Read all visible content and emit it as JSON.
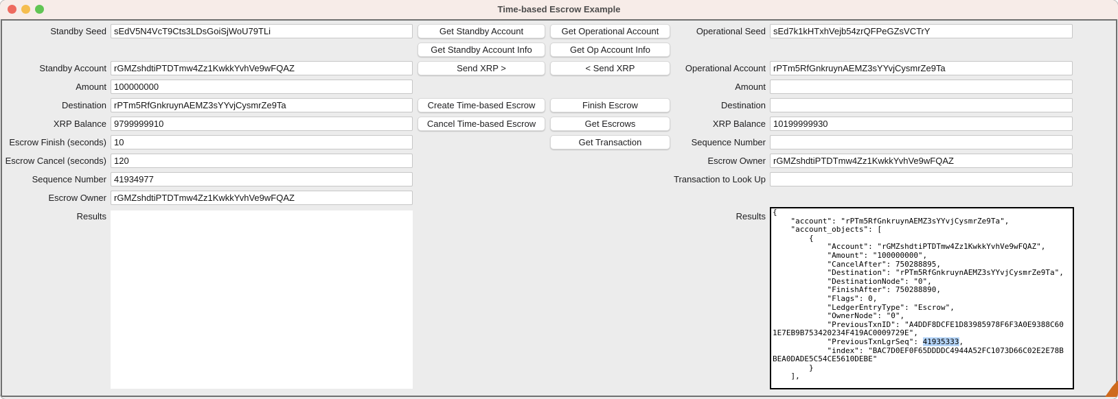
{
  "window": {
    "title": "Time-based Escrow Example"
  },
  "colors": {
    "titlebar_bg": "#f7ece8",
    "content_bg": "#ececec",
    "results_border": "#000000",
    "selection_highlight": "#b5d5f9",
    "traffic_close": "#ee6a5f",
    "traffic_minimize": "#f5bd4f",
    "traffic_zoom": "#61c554",
    "cursor_orange": "#cf6a1d"
  },
  "left_panel": {
    "fields": [
      {
        "label": "Standby Seed",
        "value": "sEdV5N4VcT9Cts3LDsGoiSjWoU79TLi"
      },
      {
        "label": "Standby Account",
        "value": "rGMZshdtiPTDTmw4Zz1KwkkYvhVe9wFQAZ"
      },
      {
        "label": "Amount",
        "value": "100000000"
      },
      {
        "label": "Destination",
        "value": "rPTm5RfGnkruynAEMZ3sYYvjCysmrZe9Ta"
      },
      {
        "label": "XRP Balance",
        "value": "9799999910"
      },
      {
        "label": "Escrow Finish (seconds)",
        "value": "10"
      },
      {
        "label": "Escrow Cancel (seconds)",
        "value": "120"
      },
      {
        "label": "Sequence Number",
        "value": "41934977"
      },
      {
        "label": "Escrow Owner",
        "value": "rGMZshdtiPTDTmw4Zz1KwkkYvhVe9wFQAZ"
      }
    ],
    "results_label": "Results",
    "results_value": ""
  },
  "buttons": {
    "col_a": [
      {
        "label": "Get Standby Account"
      },
      {
        "label": "Get Standby Account Info"
      },
      {
        "label": "Send XRP >"
      },
      {
        "label": "Create Time-based Escrow"
      },
      {
        "label": "Cancel Time-based Escrow"
      }
    ],
    "col_b": [
      {
        "label": "Get Operational Account"
      },
      {
        "label": "Get Op Account Info"
      },
      {
        "label": "< Send XRP"
      },
      {
        "label": "Finish Escrow"
      },
      {
        "label": "Get Escrows"
      },
      {
        "label": "Get Transaction"
      }
    ]
  },
  "right_panel": {
    "fields": [
      {
        "label": "Operational Seed",
        "value": "sEd7k1kHTxhVejb54zrQFPeGZsVCTrY"
      },
      {
        "label": "Operational Account",
        "value": "rPTm5RfGnkruynAEMZ3sYYvjCysmrZe9Ta"
      },
      {
        "label": "Amount",
        "value": ""
      },
      {
        "label": "Destination",
        "value": ""
      },
      {
        "label": "XRP Balance",
        "value": "10199999930"
      },
      {
        "label": "Sequence Number",
        "value": ""
      },
      {
        "label": "Escrow Owner",
        "value": "rGMZshdtiPTDTmw4Zz1KwkkYvhVe9wFQAZ"
      },
      {
        "label": "Transaction to Look Up",
        "value": ""
      }
    ],
    "results_label": "Results",
    "results": {
      "json_before": "{\n    \"account\": \"rPTm5RfGnkruynAEMZ3sYYvjCysmrZe9Ta\",\n    \"account_objects\": [\n        {\n            \"Account\": \"rGMZshdtiPTDTmw4Zz1KwkkYvhVe9wFQAZ\",\n            \"Amount\": \"100000000\",\n            \"CancelAfter\": 750288895,\n            \"Destination\": \"rPTm5RfGnkruynAEMZ3sYYvjCysmrZe9Ta\",\n            \"DestinationNode\": \"0\",\n            \"FinishAfter\": 750288890,\n            \"Flags\": 0,\n            \"LedgerEntryType\": \"Escrow\",\n            \"OwnerNode\": \"0\",\n            \"PreviousTxnID\": \"A4DDF8DCFE1D83985978F6F3A0E9388C601E7EB9B753420234F419AC0009729E\",\n            \"PreviousTxnLgrSeq\": ",
      "json_selected": "41935333",
      "json_after": ",\n            \"index\": \"BAC7D0EF0F65DDDDC4944A52FC1073D66C02E2E78BBEA0DADE5C54CE5610DEBE\"\n        }\n    ],"
    }
  }
}
